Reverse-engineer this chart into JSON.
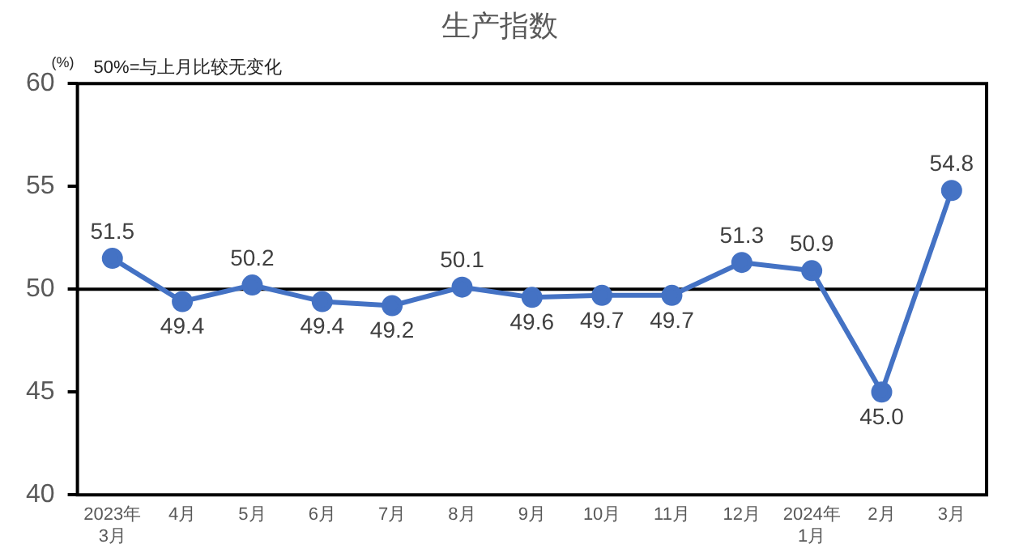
{
  "chart_data": {
    "type": "line",
    "title": "生产指数",
    "ylabel": "(%)",
    "annotations": [
      "50%=与上月比较无变化"
    ],
    "categories": [
      "2023年\n3月",
      "4月",
      "5月",
      "6月",
      "7月",
      "8月",
      "9月",
      "10月",
      "11月",
      "12月",
      "2024年\n1月",
      "2月",
      "3月"
    ],
    "series": [
      {
        "color": "#4472c4",
        "values": [
          51.5,
          49.4,
          50.2,
          49.4,
          49.2,
          50.1,
          49.6,
          49.7,
          49.7,
          51.3,
          50.9,
          45.0,
          54.8
        ],
        "value_labels": [
          "51.5",
          "49.4",
          "50.2",
          "49.4",
          "49.2",
          "50.1",
          "49.6",
          "49.7",
          "49.7",
          "51.3",
          "50.9",
          "45.0",
          "54.8"
        ]
      }
    ],
    "ylim": [
      40,
      60
    ],
    "yticks": [
      40,
      45,
      50,
      55,
      60
    ],
    "ref_lines": [
      {
        "axis": "y",
        "value": 50,
        "color": "#000000"
      }
    ],
    "grid": false,
    "legend": false,
    "marker": "circle",
    "line_style": "solid"
  }
}
